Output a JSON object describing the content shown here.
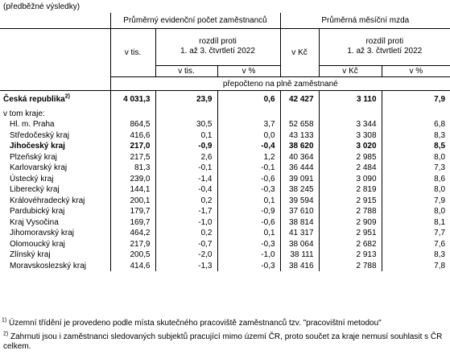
{
  "preliminary": "(předběžné výsledky)",
  "header": {
    "group1": "Průměrný evidenční počet zaměstnanců",
    "group2": "Průměrná měsíční mzda",
    "v_tis": "v tis.",
    "rozdil_line1": "rozdíl proti",
    "rozdil_line2": "1. až 3. čtvrtletí 2022",
    "v_kc": "v Kč",
    "sub_v_tis": "v tis.",
    "sub_pct": "v %",
    "sub_v_kc": "v Kč",
    "sub_pct2": "v %",
    "recalc": "přepočteno na plně zaměstnané"
  },
  "republic": {
    "name": "Česká republika",
    "note": "2)",
    "v1": "4 031,3",
    "v2": "23,9",
    "v3": "0,6",
    "v4": "42 427",
    "v5": "3 110",
    "v6": "7,9"
  },
  "v_tom_kraje": "v tom kraje:",
  "rows": [
    {
      "name": "Hl. m. Praha",
      "v1": "864,5",
      "v2": "30,5",
      "v3": "3,7",
      "v4": "52 658",
      "v5": "3 344",
      "v6": "6,8"
    },
    {
      "name": "Středočeský kraj",
      "v1": "416,6",
      "v2": "0,1",
      "v3": "0,0",
      "v4": "43 133",
      "v5": "3 308",
      "v6": "8,3"
    },
    {
      "name": "Jihočeský kraj",
      "v1": "217,0",
      "v2": "-0,9",
      "v3": "-0,4",
      "v4": "38 620",
      "v5": "3 020",
      "v6": "8,5"
    },
    {
      "name": "Plzeňský kraj",
      "v1": "217,5",
      "v2": "2,6",
      "v3": "1,2",
      "v4": "40 364",
      "v5": "2 985",
      "v6": "8,0"
    },
    {
      "name": "Karlovarský kraj",
      "v1": "81,3",
      "v2": "-0,1",
      "v3": "-0,1",
      "v4": "36 444",
      "v5": "2 484",
      "v6": "7,3"
    },
    {
      "name": "Ústecký kraj",
      "v1": "239,0",
      "v2": "-1,4",
      "v3": "-0,6",
      "v4": "39 091",
      "v5": "3 090",
      "v6": "8,6"
    },
    {
      "name": "Liberecký kraj",
      "v1": "144,1",
      "v2": "-0,4",
      "v3": "-0,3",
      "v4": "38 245",
      "v5": "2 819",
      "v6": "8,0"
    },
    {
      "name": "Královéhradecký kraj",
      "v1": "200,1",
      "v2": "0,2",
      "v3": "0,1",
      "v4": "39 594",
      "v5": "2 915",
      "v6": "7,9"
    },
    {
      "name": "Pardubický kraj",
      "v1": "179,7",
      "v2": "-1,7",
      "v3": "-0,9",
      "v4": "37 610",
      "v5": "2 788",
      "v6": "8,0"
    },
    {
      "name": "Kraj Vysočina",
      "v1": "169,7",
      "v2": "-1,0",
      "v3": "-0,6",
      "v4": "38 814",
      "v5": "2 909",
      "v6": "8,1"
    },
    {
      "name": "Jihomoravský kraj",
      "v1": "464,2",
      "v2": "0,2",
      "v3": "0,1",
      "v4": "41 317",
      "v5": "2 951",
      "v6": "7,7"
    },
    {
      "name": "Olomoucký kraj",
      "v1": "217,9",
      "v2": "-0,7",
      "v3": "-0,3",
      "v4": "38 064",
      "v5": "2 682",
      "v6": "7,6"
    },
    {
      "name": "Zlínský kraj",
      "v1": "200,5",
      "v2": "-2,0",
      "v3": "-1,0",
      "v4": "38 111",
      "v5": "2 913",
      "v6": "8,3"
    },
    {
      "name": "Moravskoslezský kraj",
      "v1": "414,6",
      "v2": "-1,3",
      "v3": "-0,3",
      "v4": "38 416",
      "v5": "2 788",
      "v6": "7,8"
    }
  ],
  "bold_row_name": "Jihočeský kraj",
  "footnotes": {
    "n1_mark": "1)",
    "n1": "Územní třídění je provedeno podle místa skutečného pracoviště zaměstnanců tzv. \"pracovištní metodou\"",
    "n2_mark": "2)",
    "n2": "Zahrnuti jsou i zaměstnanci sledovaných subjektů pracující mimo území ČR, proto součet za kraje nemusí souhlasit s ČR celkem."
  }
}
